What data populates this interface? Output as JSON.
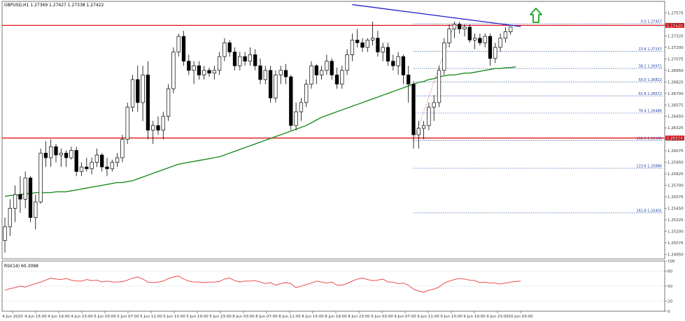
{
  "header": {
    "text": "GBPUSD,H1  1.27369 1.27427 1.27338 1.27422"
  },
  "rsi_panel": {
    "label": "RSI(14) 60.3098"
  },
  "chart_data": [
    {
      "type": "candlestick",
      "symbol": "GBPUSD",
      "timeframe": "H1",
      "ohlc_header": {
        "open": 1.27369,
        "high": 1.27427,
        "low": 1.27338,
        "close": 1.27422
      },
      "ylim": [
        1.249,
        1.277
      ],
      "y_ticks": [
        "1.27575",
        "1.27450",
        "1.27325",
        "1.27200",
        "1.27075",
        "1.26950",
        "1.26825",
        "1.26700",
        "1.26575",
        "1.26450",
        "1.26325",
        "1.26200",
        "1.26075",
        "1.25950",
        "1.25825",
        "1.25700",
        "1.25575",
        "1.25450",
        "1.25325",
        "1.25200",
        "1.25075",
        "1.24950"
      ],
      "x_ticks": [
        "4 Jun 2020",
        "4 Jun 15:00",
        "4 Jun 19:00",
        "4 Jun 23:00",
        "5 Jun 03:00",
        "5 Jun 07:00",
        "5 Jun 11:00",
        "5 Jun 15:00",
        "5 Jun 19:00",
        "5 Jun 23:00",
        "8 Jun 03:00",
        "8 Jun 07:00",
        "8 Jun 11:00",
        "8 Jun 15:00",
        "8 Jun 19:00",
        "8 Jun 23:00",
        "9 Jun 03:00",
        "9 Jun 07:00",
        "9 Jun 11:00",
        "9 Jun 15:00",
        "9 Jun 19:00",
        "9 Jun 23:00",
        "10 Jun 03:00"
      ],
      "candles": [
        [
          1.251,
          1.2535,
          1.2497,
          1.2525
        ],
        [
          1.2525,
          1.2555,
          1.2515,
          1.2545
        ],
        [
          1.2545,
          1.257,
          1.253,
          1.256
        ],
        [
          1.256,
          1.258,
          1.254,
          1.2555
        ],
        [
          1.2555,
          1.2585,
          1.2545,
          1.2578
        ],
        [
          1.2578,
          1.258,
          1.253,
          1.2535
        ],
        [
          1.2535,
          1.256,
          1.2522,
          1.2552
        ],
        [
          1.2552,
          1.261,
          1.255,
          1.2605
        ],
        [
          1.2605,
          1.2618,
          1.259,
          1.26
        ],
        [
          1.26,
          1.262,
          1.259,
          1.2612
        ],
        [
          1.2612,
          1.2615,
          1.2595,
          1.2603
        ],
        [
          1.2603,
          1.261,
          1.259,
          1.2605
        ],
        [
          1.2605,
          1.2608,
          1.259,
          1.26
        ],
        [
          1.26,
          1.2612,
          1.2598,
          1.2608
        ],
        [
          1.2608,
          1.2612,
          1.258,
          1.2585
        ],
        [
          1.2585,
          1.2595,
          1.258,
          1.259
        ],
        [
          1.259,
          1.26,
          1.2585,
          1.2588
        ],
        [
          1.2588,
          1.26,
          1.2582,
          1.2595
        ],
        [
          1.2595,
          1.261,
          1.259,
          1.2603
        ],
        [
          1.2603,
          1.2605,
          1.2585,
          1.259
        ],
        [
          1.259,
          1.26,
          1.258,
          1.2588
        ],
        [
          1.2588,
          1.2598,
          1.2585,
          1.2595
        ],
        [
          1.2595,
          1.2605,
          1.259,
          1.26
        ],
        [
          1.26,
          1.2625,
          1.2595,
          1.262
        ],
        [
          1.262,
          1.266,
          1.2615,
          1.2655
        ],
        [
          1.2655,
          1.269,
          1.265,
          1.2685
        ],
        [
          1.2685,
          1.27,
          1.265,
          1.266
        ],
        [
          1.266,
          1.27,
          1.264,
          1.269
        ],
        [
          1.269,
          1.2705,
          1.262,
          1.263
        ],
        [
          1.263,
          1.264,
          1.2615,
          1.2635
        ],
        [
          1.2635,
          1.2645,
          1.2625,
          1.263
        ],
        [
          1.263,
          1.265,
          1.262,
          1.2645
        ],
        [
          1.2645,
          1.268,
          1.264,
          1.2675
        ],
        [
          1.2675,
          1.272,
          1.267,
          1.2715
        ],
        [
          1.2715,
          1.2735,
          1.271,
          1.2732
        ],
        [
          1.2732,
          1.2738,
          1.27,
          1.2705
        ],
        [
          1.2705,
          1.2712,
          1.269,
          1.2695
        ],
        [
          1.2695,
          1.2705,
          1.268,
          1.27
        ],
        [
          1.27,
          1.2705,
          1.2685,
          1.269
        ],
        [
          1.269,
          1.27,
          1.2685,
          1.2695
        ],
        [
          1.2695,
          1.2698,
          1.2688,
          1.2692
        ],
        [
          1.2692,
          1.27,
          1.2685,
          1.2695
        ],
        [
          1.2695,
          1.2715,
          1.269,
          1.271
        ],
        [
          1.271,
          1.273,
          1.2705,
          1.2725
        ],
        [
          1.2725,
          1.2728,
          1.271,
          1.2715
        ],
        [
          1.2715,
          1.272,
          1.2695,
          1.27
        ],
        [
          1.27,
          1.2715,
          1.2695,
          1.271
        ],
        [
          1.271,
          1.2715,
          1.27,
          1.2705
        ],
        [
          1.2705,
          1.272,
          1.27,
          1.2712
        ],
        [
          1.2712,
          1.2718,
          1.2695,
          1.27
        ],
        [
          1.27,
          1.2708,
          1.268,
          1.2685
        ],
        [
          1.2685,
          1.27,
          1.268,
          1.2695
        ],
        [
          1.2695,
          1.27,
          1.266,
          1.2665
        ],
        [
          1.2665,
          1.2695,
          1.266,
          1.269
        ],
        [
          1.269,
          1.27,
          1.268,
          1.2695
        ],
        [
          1.2695,
          1.2702,
          1.268,
          1.2688
        ],
        [
          1.2688,
          1.269,
          1.263,
          1.2635
        ],
        [
          1.2635,
          1.266,
          1.263,
          1.265
        ],
        [
          1.265,
          1.2665,
          1.264,
          1.266
        ],
        [
          1.266,
          1.2685,
          1.2655,
          1.268
        ],
        [
          1.268,
          1.2705,
          1.2675,
          1.27
        ],
        [
          1.27,
          1.2702,
          1.268,
          1.269
        ],
        [
          1.269,
          1.27,
          1.2685,
          1.2695
        ],
        [
          1.2695,
          1.2712,
          1.269,
          1.2705
        ],
        [
          1.2705,
          1.2708,
          1.2685,
          1.269
        ],
        [
          1.269,
          1.2698,
          1.2675,
          1.268
        ],
        [
          1.268,
          1.27,
          1.2675,
          1.2695
        ],
        [
          1.2695,
          1.2718,
          1.269,
          1.2712
        ],
        [
          1.2712,
          1.2735,
          1.2705,
          1.2728
        ],
        [
          1.2728,
          1.274,
          1.272,
          1.2725
        ],
        [
          1.2725,
          1.273,
          1.2715,
          1.272
        ],
        [
          1.272,
          1.273,
          1.2715,
          1.2728
        ],
        [
          1.2728,
          1.2748,
          1.2722,
          1.273
        ],
        [
          1.273,
          1.2738,
          1.271,
          1.2715
        ],
        [
          1.2715,
          1.2725,
          1.2705,
          1.272
        ],
        [
          1.272,
          1.2725,
          1.27,
          1.2705
        ],
        [
          1.2705,
          1.2712,
          1.2695,
          1.27
        ],
        [
          1.27,
          1.2715,
          1.269,
          1.271
        ],
        [
          1.271,
          1.2712,
          1.268,
          1.269
        ],
        [
          1.269,
          1.27,
          1.266,
          1.268
        ],
        [
          1.268,
          1.2683,
          1.261,
          1.2625
        ],
        [
          1.2625,
          1.264,
          1.261,
          1.2632
        ],
        [
          1.2632,
          1.264,
          1.262,
          1.2635
        ],
        [
          1.2635,
          1.266,
          1.263,
          1.2655
        ],
        [
          1.2655,
          1.2668,
          1.264,
          1.266
        ],
        [
          1.266,
          1.27,
          1.2655,
          1.2695
        ],
        [
          1.2695,
          1.273,
          1.269,
          1.2725
        ],
        [
          1.2725,
          1.2745,
          1.272,
          1.274
        ],
        [
          1.274,
          1.2748,
          1.273,
          1.2745
        ],
        [
          1.2745,
          1.2748,
          1.2735,
          1.274
        ],
        [
          1.274,
          1.2745,
          1.2732,
          1.2742
        ],
        [
          1.2742,
          1.2745,
          1.2725,
          1.2728
        ],
        [
          1.2728,
          1.2735,
          1.2718,
          1.273
        ],
        [
          1.273,
          1.2735,
          1.2722,
          1.2725
        ],
        [
          1.2725,
          1.2735,
          1.272,
          1.2732
        ],
        [
          1.2732,
          1.2735,
          1.27,
          1.2708
        ],
        [
          1.2708,
          1.2725,
          1.2703,
          1.272
        ],
        [
          1.272,
          1.2735,
          1.2715,
          1.273
        ],
        [
          1.273,
          1.2742,
          1.2725,
          1.2737
        ],
        [
          1.27369,
          1.27427,
          1.27338,
          1.27422
        ]
      ],
      "moving_average": [
        1.2558,
        1.2559,
        1.2559,
        1.256,
        1.2561,
        1.2561,
        1.2562,
        1.2562,
        1.2562,
        1.2562,
        1.2563,
        1.2563,
        1.2563,
        1.2564,
        1.2565,
        1.2566,
        1.2567,
        1.2568,
        1.2569,
        1.257,
        1.2571,
        1.2572,
        1.2573,
        1.2573,
        1.2574,
        1.2575,
        1.2577,
        1.2579,
        1.2581,
        1.2583,
        1.2585,
        1.2587,
        1.2589,
        1.2591,
        1.2593,
        1.2594,
        1.2595,
        1.2596,
        1.2597,
        1.2598,
        1.2599,
        1.26,
        1.2601,
        1.2603,
        1.2605,
        1.2607,
        1.2609,
        1.2611,
        1.2613,
        1.2615,
        1.2617,
        1.2619,
        1.2621,
        1.2623,
        1.2625,
        1.2627,
        1.2629,
        1.2631,
        1.2633,
        1.2635,
        1.2638,
        1.2641,
        1.2644,
        1.2646,
        1.2648,
        1.265,
        1.2652,
        1.2654,
        1.2656,
        1.2658,
        1.266,
        1.2662,
        1.2664,
        1.2666,
        1.2668,
        1.267,
        1.2672,
        1.2674,
        1.2676,
        1.2678,
        1.268,
        1.2682,
        1.2683,
        1.2685,
        1.2686,
        1.2688,
        1.2689,
        1.269,
        1.269,
        1.2691,
        1.2692,
        1.2692,
        1.2693,
        1.2694,
        1.2695,
        1.2696,
        1.2697,
        1.2697,
        1.2698,
        1.2698,
        1.2699
      ],
      "fibonacci": [
        {
          "label": "0.0",
          "value": "1.27457"
        },
        {
          "label": "23.6",
          "value": "1.27157"
        },
        {
          "label": "38.2",
          "value": "1.26971"
        },
        {
          "label": "50.0",
          "value": "1.26822"
        },
        {
          "label": "61.8",
          "value": "1.26672"
        },
        {
          "label": "76.4",
          "value": "1.26486"
        },
        {
          "label": "100.0",
          "value": "1.26186"
        },
        {
          "label": "123.6",
          "value": "1.25886"
        },
        {
          "label": "161.8",
          "value": "1.25401"
        }
      ],
      "horizontal_lines": [
        {
          "value": 1.27439,
          "label": "1.27439",
          "color": "#e0141e"
        },
        {
          "value": 1.26214,
          "label": "1.26214",
          "color": "#e0141e"
        }
      ],
      "trendline": {
        "color": "#1c1cc8",
        "from": [
          68,
          1.27665
        ],
        "to": [
          101,
          1.27427
        ]
      },
      "arrow": {
        "direction": "up",
        "color": "#1aa320"
      },
      "colors": {
        "bull": "#ffffff",
        "bear": "#000000",
        "ma": "#1f8c1f",
        "fib": "#1a3fa0",
        "rsi": "#e83a3a"
      }
    },
    {
      "type": "line",
      "name": "RSI(14)",
      "value": 60.3098,
      "ylim": [
        0,
        100
      ],
      "y_ticks": [
        "100",
        "80",
        "50",
        "20",
        "0"
      ],
      "values": [
        42,
        45,
        47,
        50,
        48,
        52,
        55,
        58,
        62,
        66,
        64,
        63,
        65,
        62,
        60,
        60,
        63,
        61,
        62,
        58,
        60,
        58,
        58,
        59,
        62,
        66,
        68,
        64,
        58,
        57,
        58,
        60,
        65,
        68,
        70,
        64,
        60,
        58,
        58,
        57,
        58,
        58,
        59,
        64,
        66,
        61,
        58,
        60,
        60,
        61,
        58,
        55,
        57,
        52,
        55,
        57,
        55,
        47,
        50,
        53,
        56,
        60,
        58,
        56,
        58,
        52,
        52,
        55,
        60,
        64,
        66,
        63,
        61,
        62,
        64,
        58,
        58,
        55,
        56,
        52,
        44,
        40,
        38,
        42,
        44,
        48,
        56,
        60,
        63,
        65,
        64,
        62,
        61,
        57,
        58,
        56,
        56,
        54,
        56,
        58,
        59,
        60.3098
      ]
    }
  ]
}
